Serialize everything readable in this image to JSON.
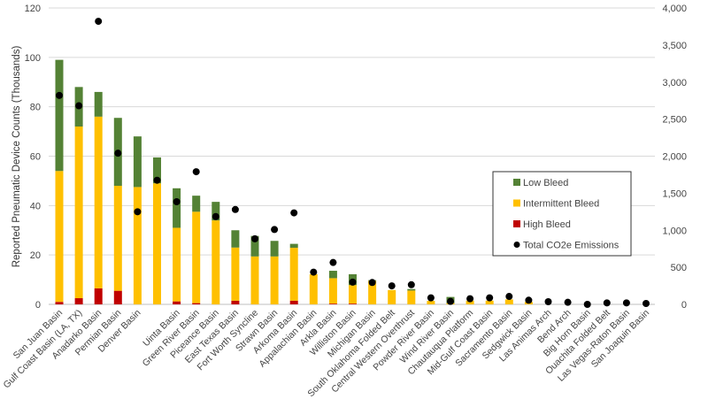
{
  "chart_data": {
    "type": "bar",
    "stacked": true,
    "title": "",
    "xlabel": "",
    "ylabel": "Reported Pneumatic Device Counts (Thousands)",
    "ylim": [
      0,
      120
    ],
    "yticks": [
      "0",
      "20",
      "40",
      "60",
      "80",
      "100",
      "120"
    ],
    "y2lim": [
      0,
      4000
    ],
    "y2ticks": [
      "0",
      "500",
      "1,000",
      "1,500",
      "2,000",
      "2,500",
      "3,000",
      "3,500",
      "4,000"
    ],
    "grid": true,
    "legend_position": "right-center",
    "categories": [
      "San Juan Basin",
      "Gulf Coast Basin (LA, TX)",
      "Anadarko Basin",
      "Permian Basin",
      "Denver Basin",
      "",
      "Uinta Basin",
      "Green River Basin",
      "Piceance Basin",
      "East Texas Basin",
      "Fort Worth Syncline",
      "Strawn Basin",
      "Arkoma Basin",
      "Appalachian Basin",
      "Arkla Basin",
      "Williston Basin",
      "Michigan Basin",
      "South Oklahoma Folded Belt",
      "Central Western Overthrust",
      "Powder River Basin",
      "Wind River Basin",
      "Chautauqua Platform",
      "Mid-Gulf Coast Basin",
      "Sacramento Basin",
      "Sedgwick Basin",
      "Las Animas Arch",
      "Bend Arch",
      "Big Horn Basin",
      "Ouachita Folded Belt",
      "Las Vegas-Raton Basin",
      "San Joaquin Basin"
    ],
    "series": [
      {
        "name": "High Bleed",
        "color": "#c00000",
        "axis": "left",
        "values": [
          1,
          2.5,
          6.5,
          5.5,
          0,
          0,
          1.2,
          0.5,
          0,
          1.5,
          0,
          0,
          1.5,
          0,
          0.3,
          0.3,
          0,
          0,
          0,
          0,
          0,
          0,
          0,
          0,
          0,
          0,
          0,
          0,
          0,
          0,
          0
        ]
      },
      {
        "name": "Intermittent Bleed",
        "color": "#ffc000",
        "axis": "left",
        "values": [
          53,
          69.5,
          69.5,
          42.5,
          47.5,
          49,
          29.8,
          37,
          34,
          21.5,
          19.4,
          19.4,
          21.4,
          12.2,
          10.3,
          7.5,
          9.5,
          5.8,
          5.6,
          1.4,
          0.5,
          1.5,
          1.5,
          2,
          1,
          0,
          0,
          0,
          0,
          0,
          0
        ]
      },
      {
        "name": "Low Bleed",
        "color": "#548235",
        "axis": "left",
        "values": [
          45,
          16,
          10,
          27.5,
          20.5,
          10.5,
          16,
          6.5,
          7.5,
          7,
          8.3,
          6.3,
          1.6,
          0,
          3,
          4.4,
          0.3,
          0,
          0.6,
          0,
          2.5,
          0,
          0,
          0,
          0,
          0,
          0,
          0,
          0,
          0,
          0
        ]
      },
      {
        "name": "Total CO2e Emissions",
        "color": "#000000",
        "axis": "right",
        "type": "scatter",
        "values": [
          2820,
          2680,
          3820,
          2040,
          1250,
          1675,
          1385,
          1790,
          1185,
          1280,
          885,
          1010,
          1235,
          435,
          565,
          300,
          295,
          250,
          265,
          88,
          40,
          76,
          88,
          107,
          56,
          36,
          28,
          0,
          20,
          20,
          12
        ]
      }
    ]
  }
}
